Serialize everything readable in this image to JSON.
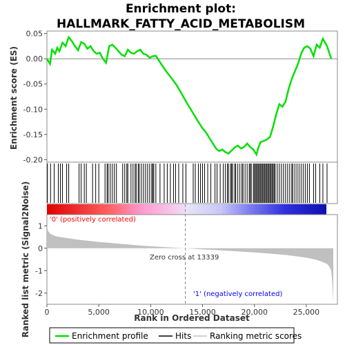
{
  "chart_data": {
    "type": "line",
    "title_line1": "Enrichment plot:",
    "title_line2": "HALLMARK_FATTY_ACID_METABOLISM",
    "top_panel": {
      "ylabel": "Enrichment score (ES)",
      "ylim": [
        -0.205,
        0.055
      ],
      "yticks": [
        0.05,
        0.0,
        -0.05,
        -0.1,
        -0.15,
        -0.2
      ],
      "ytick_labels": [
        "0.05",
        "0.00",
        "-0.05",
        "-0.10",
        "-0.15",
        "-0.20"
      ],
      "series": [
        {
          "name": "Enrichment profile",
          "color": "#00e000",
          "x": [
            0,
            300,
            500,
            800,
            1000,
            1200,
            1500,
            1800,
            2100,
            2400,
            2700,
            3000,
            3300,
            3600,
            3900,
            4200,
            4500,
            4800,
            5100,
            5400,
            5700,
            6000,
            6300,
            6600,
            6900,
            7200,
            7500,
            7800,
            8100,
            8400,
            8700,
            9000,
            9300,
            9600,
            9900,
            10200,
            10500,
            11000,
            11500,
            12000,
            12500,
            13000,
            13500,
            14000,
            14500,
            15000,
            15300,
            15600,
            16000,
            16300,
            16600,
            16900,
            17200,
            17500,
            17800,
            18100,
            18400,
            18700,
            19000,
            19300,
            19600,
            19900,
            20200,
            20400,
            20600,
            20900,
            21200,
            21500,
            21800,
            22100,
            22400,
            22700,
            23000,
            23300,
            23600,
            23900,
            24200,
            24500,
            24800,
            25100,
            25400,
            25700,
            26000,
            26300,
            26600,
            27000,
            27400
          ],
          "y": [
            0.0,
            -0.01,
            0.018,
            0.01,
            0.022,
            0.015,
            0.032,
            0.025,
            0.043,
            0.035,
            0.025,
            0.017,
            0.033,
            0.03,
            0.02,
            0.025,
            0.015,
            0.01,
            0.012,
            0.0,
            -0.008,
            0.025,
            0.028,
            0.022,
            0.015,
            0.008,
            0.005,
            0.018,
            0.012,
            0.01,
            0.015,
            0.018,
            0.01,
            0.008,
            0.002,
            0.005,
            0.006,
            -0.01,
            -0.025,
            -0.038,
            -0.052,
            -0.07,
            -0.088,
            -0.105,
            -0.122,
            -0.138,
            -0.145,
            -0.155,
            -0.168,
            -0.178,
            -0.183,
            -0.18,
            -0.185,
            -0.188,
            -0.182,
            -0.176,
            -0.172,
            -0.178,
            -0.175,
            -0.168,
            -0.175,
            -0.18,
            -0.19,
            -0.175,
            -0.165,
            -0.163,
            -0.16,
            -0.155,
            -0.135,
            -0.11,
            -0.09,
            -0.095,
            -0.085,
            -0.06,
            -0.04,
            -0.025,
            -0.01,
            0.01,
            0.022,
            0.025,
            0.02,
            0.005,
            0.028,
            0.022,
            0.04,
            0.025,
            0.0
          ]
        }
      ]
    },
    "hits_panel": {
      "legend_name": "Hits",
      "hit_positions": [
        50,
        350,
        700,
        1100,
        1300,
        1500,
        1900,
        2100,
        3100,
        3300,
        3600,
        3800,
        4400,
        4700,
        5000,
        5600,
        5800,
        5900,
        6100,
        6300,
        6500,
        6700,
        7300,
        7500,
        7700,
        7800,
        8100,
        8300,
        8500,
        8600,
        8800,
        8900,
        9100,
        9300,
        9500,
        9700,
        9900,
        10100,
        10200,
        10300,
        10500,
        10900,
        11300,
        11600,
        11900,
        12200,
        12400,
        12700,
        13100,
        13400,
        14100,
        14300,
        14600,
        14800,
        15000,
        15200,
        15500,
        15800,
        16200,
        16400,
        16700,
        17000,
        17200,
        17400,
        17500,
        17700,
        17800,
        17900,
        18100,
        18200,
        18400,
        18600,
        18800,
        18900,
        19100,
        19300,
        19500,
        19600,
        19700,
        19900,
        20000,
        20100,
        20200,
        20300,
        20400,
        20500,
        20600,
        20700,
        20800,
        20900,
        21000,
        21100,
        21200,
        21300,
        21400,
        21500,
        21600,
        21700,
        21800,
        21900,
        22000,
        22200,
        22400,
        22600,
        22800,
        23000,
        23200,
        23400,
        23600,
        23700,
        23900,
        24100,
        24300,
        24500,
        24700,
        24900,
        25100,
        25300,
        25700,
        25900,
        26300,
        26600,
        27000
      ]
    },
    "rank_panel": {
      "ylabel": "Ranked list metric (Signal2Noise)",
      "xlabel": "Rank in Ordered Dataset",
      "ylim": [
        -2.5,
        1.5
      ],
      "yticks": [
        1,
        0,
        -1,
        -2
      ],
      "ytick_labels": [
        "1",
        "0",
        "-1",
        "-2"
      ],
      "xlim": [
        0,
        28000
      ],
      "xticks": [
        0,
        5000,
        10000,
        15000,
        20000,
        25000
      ],
      "xtick_labels": [
        "0",
        "5,000",
        "10,000",
        "15,000",
        "20,000",
        "25,000"
      ],
      "fill_color": "#c0c0c0",
      "x": [
        0,
        100,
        300,
        600,
        1000,
        2000,
        3000,
        5000,
        7000,
        9000,
        11000,
        13339,
        15000,
        17000,
        19000,
        21000,
        23000,
        24000,
        25000,
        26000,
        26500,
        27000,
        27200,
        27400,
        27500,
        27600
      ],
      "y": [
        1.0,
        0.78,
        0.65,
        0.58,
        0.52,
        0.45,
        0.38,
        0.28,
        0.2,
        0.12,
        0.06,
        0.0,
        -0.05,
        -0.1,
        -0.16,
        -0.22,
        -0.3,
        -0.36,
        -0.42,
        -0.52,
        -0.6,
        -0.7,
        -0.8,
        -1.0,
        -1.5,
        -2.35
      ],
      "zero_cross_label": "Zero cross at 13339",
      "positive_label": "'0' (positively correlated)",
      "negative_label": "'1' (negatively correlated)",
      "positive_color": "#ff0000",
      "negative_color": "#0000ff"
    },
    "legend": [
      {
        "label": "Enrichment profile",
        "color": "#00e000"
      },
      {
        "label": "Hits",
        "color": "#000000"
      },
      {
        "label": "Ranking metric scores",
        "color": "#c0c0c0"
      }
    ]
  }
}
